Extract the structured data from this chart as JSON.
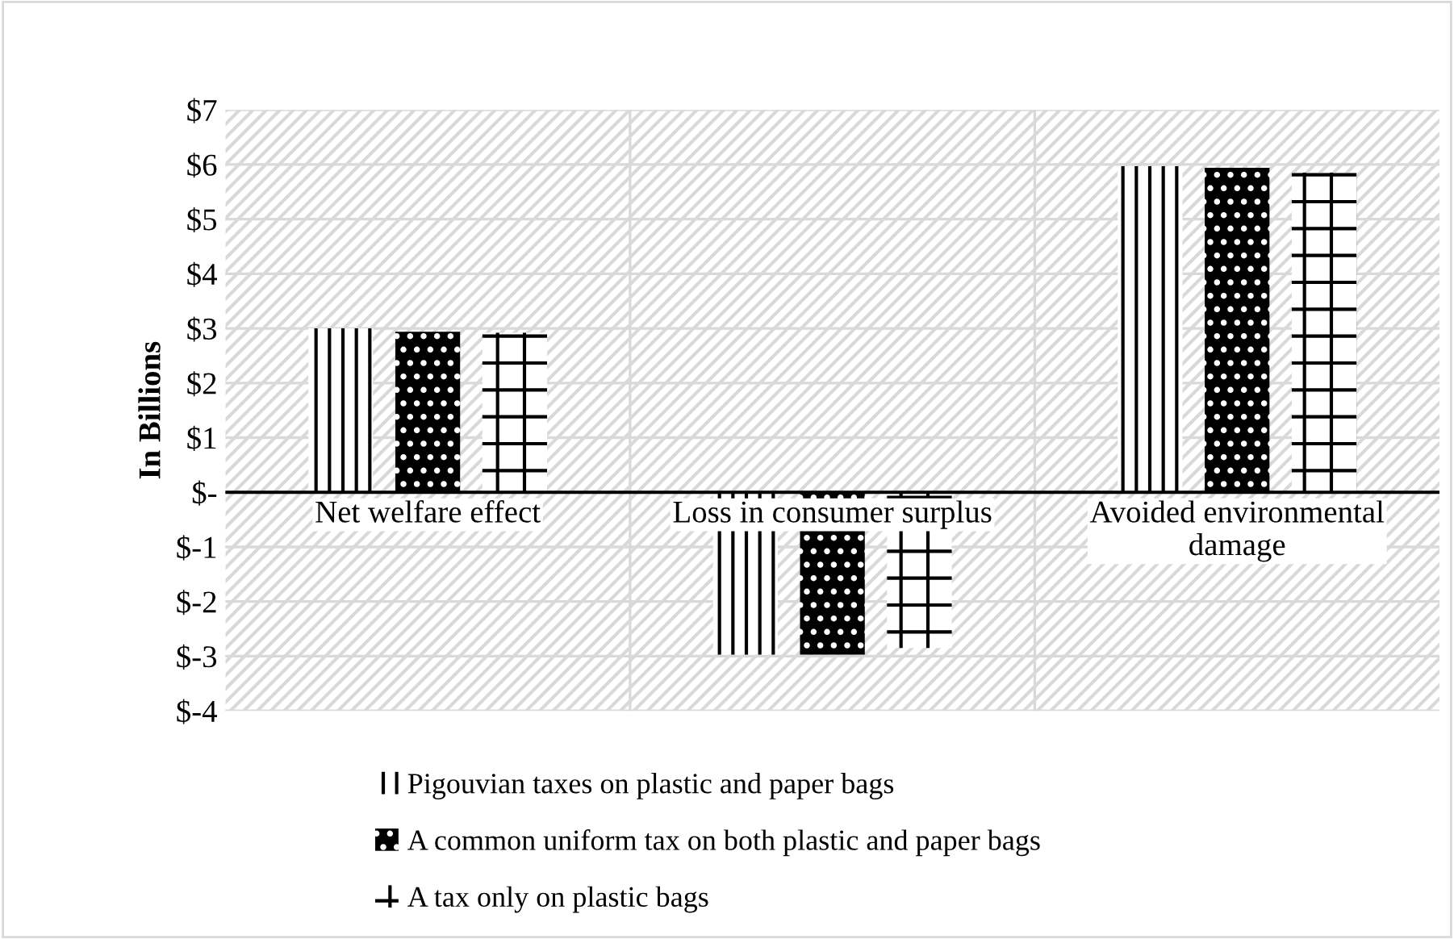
{
  "chart_data": {
    "type": "bar",
    "ylabel": "In Billions",
    "categories": [
      "Net welfare effect",
      "Loss in consumer surplus",
      "Avoided environmental\ndamage"
    ],
    "series": [
      {
        "name": "Pigouvian taxes on plastic and paper bags",
        "color": "#ffffff",
        "values": [
          3.0,
          -2.97,
          5.97
        ]
      },
      {
        "name": "A common uniform tax on both plastic and paper bags",
        "color": "#000000",
        "values": [
          2.94,
          -2.97,
          5.94
        ]
      },
      {
        "name": "A tax only on plastic bags",
        "color": "#ffffff",
        "values": [
          2.92,
          -2.85,
          5.85
        ]
      }
    ],
    "ylim": [
      -4,
      7
    ],
    "yticks": [
      {
        "value": -4,
        "label": "$-4"
      },
      {
        "value": -3,
        "label": "$-3"
      },
      {
        "value": -2,
        "label": "$-2"
      },
      {
        "value": -1,
        "label": "$-1"
      },
      {
        "value": 0,
        "label": "$-"
      },
      {
        "value": 1,
        "label": "$1"
      },
      {
        "value": 2,
        "label": "$2"
      },
      {
        "value": 3,
        "label": "$3"
      },
      {
        "value": 4,
        "label": "$4"
      },
      {
        "value": 5,
        "label": "$5"
      },
      {
        "value": 6,
        "label": "$6"
      },
      {
        "value": 7,
        "label": "$7"
      }
    ],
    "grid": true,
    "legend": "bottom"
  }
}
